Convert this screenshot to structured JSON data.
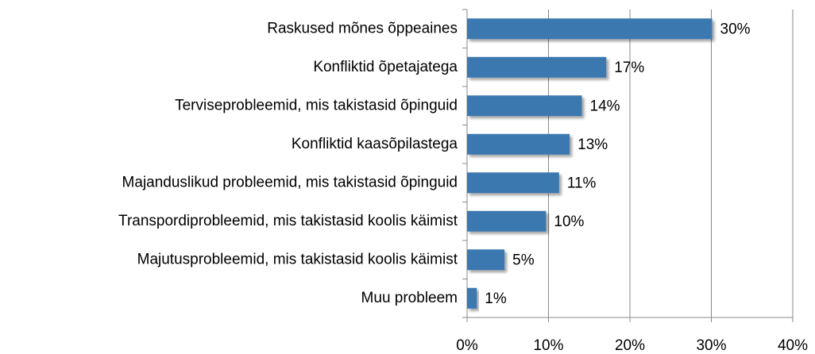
{
  "chart_data": {
    "type": "bar",
    "orientation": "horizontal",
    "categories": [
      "Raskused mõnes õppeaines",
      "Konfliktid õpetajatega",
      "Terviseprobleemid, mis takistasid õpinguid",
      "Konfliktid kaasõpilastega",
      "Majanduslikud probleemid, mis takistasid õpinguid",
      "Transpordiprobleemid, mis takistasid koolis käimist",
      "Majutusprobleemid, mis takistasid koolis käimist",
      "Muu probleem"
    ],
    "values": [
      30.1,
      17.1,
      14.1,
      12.6,
      11.3,
      9.7,
      4.6,
      1.2
    ],
    "value_labels": [
      "30%",
      "17%",
      "14%",
      "13%",
      "11%",
      "10%",
      "5%",
      "1%"
    ],
    "color": "#3b78b0",
    "xlim": [
      0,
      40
    ],
    "xticks": [
      {
        "value": 0,
        "label": "0%"
      },
      {
        "value": 10,
        "label": "10%"
      },
      {
        "value": 20,
        "label": "20%"
      },
      {
        "value": 30,
        "label": "30%"
      },
      {
        "value": 40,
        "label": "40%"
      }
    ],
    "grid": true
  }
}
